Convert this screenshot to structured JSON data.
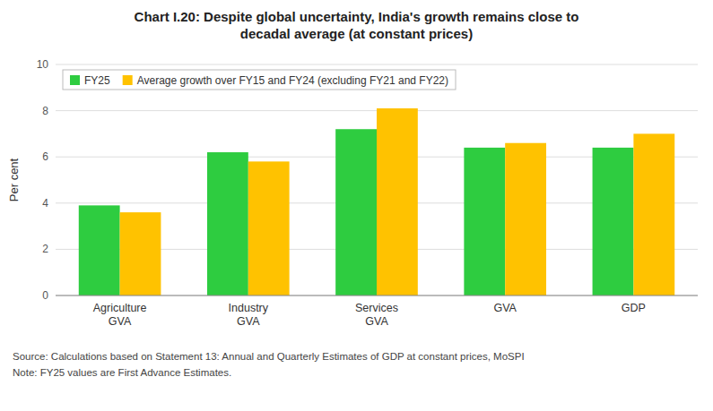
{
  "chart_data": {
    "type": "bar",
    "title": "Chart I.20: Despite global uncertainty, India's growth remains close to\ndecadal average (at constant prices)",
    "categories": [
      "Agriculture\nGVA",
      "Industry\nGVA",
      "Services\nGVA",
      "GVA",
      "GDP"
    ],
    "series": [
      {
        "name": "FY25",
        "color": "#2ecc40",
        "values": [
          3.9,
          6.2,
          7.2,
          6.4,
          6.4
        ]
      },
      {
        "name": "Average growth over FY15 and FY24 (excluding FY21 and FY22)",
        "color": "#ffc200",
        "values": [
          3.6,
          5.8,
          8.1,
          6.6,
          7.0
        ]
      }
    ],
    "ylabel": "Per cent",
    "ylim": [
      0,
      10
    ],
    "yticks": [
      0,
      2,
      4,
      6,
      8,
      10
    ],
    "grid": true,
    "legend": "upper left",
    "annotations": [
      "Source: Calculations based on Statement 13: Annual and Quarterly Estimates of GDP at constant prices, MoSPI",
      "Note: FY25 values are First Advance Estimates."
    ]
  }
}
